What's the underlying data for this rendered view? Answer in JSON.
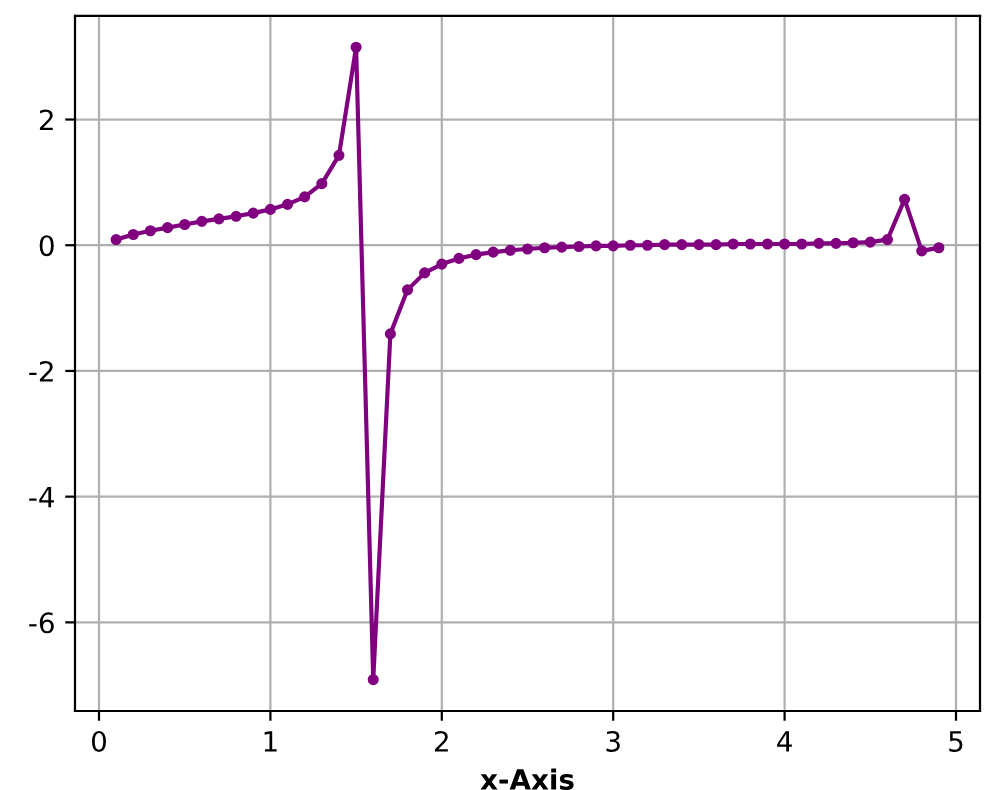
{
  "chart_data": {
    "type": "line",
    "xlabel": "x-Axis",
    "x": [
      0.1,
      0.2,
      0.3,
      0.4,
      0.5,
      0.6,
      0.7,
      0.8,
      0.9,
      1.0,
      1.1,
      1.2,
      1.3,
      1.4,
      1.5,
      1.6,
      1.7,
      1.8,
      1.9,
      2.0,
      2.1,
      2.2,
      2.3,
      2.4,
      2.5,
      2.6,
      2.7,
      2.8,
      2.9,
      3.0,
      3.1,
      3.2,
      3.3,
      3.4,
      3.5,
      3.6,
      3.7,
      3.8,
      3.9,
      4.0,
      4.1,
      4.2,
      4.3,
      4.4,
      4.5,
      4.6,
      4.7,
      4.8,
      4.9
    ],
    "series": [
      {
        "color": "#800080",
        "values": [
          0.09,
          0.17,
          0.23,
          0.28,
          0.33,
          0.38,
          0.42,
          0.46,
          0.51,
          0.57,
          0.65,
          0.77,
          0.98,
          1.43,
          3.15,
          -6.91,
          -1.41,
          -0.71,
          -0.44,
          -0.3,
          -0.21,
          -0.15,
          -0.11,
          -0.08,
          -0.06,
          -0.04,
          -0.03,
          -0.02,
          -0.01,
          -0.01,
          0.0,
          0.0,
          0.01,
          0.01,
          0.01,
          0.01,
          0.02,
          0.02,
          0.02,
          0.02,
          0.02,
          0.03,
          0.03,
          0.04,
          0.05,
          0.09,
          0.73,
          -0.09,
          -0.04
        ]
      }
    ],
    "xlim": [
      -0.14,
      5.14
    ],
    "ylim": [
      -7.41,
      3.65
    ],
    "xticks": [
      0,
      1,
      2,
      3,
      4,
      5
    ],
    "yticks": [
      -6,
      -4,
      -2,
      0,
      2
    ],
    "grid": true,
    "marker": "circle",
    "line_style": "solid"
  }
}
